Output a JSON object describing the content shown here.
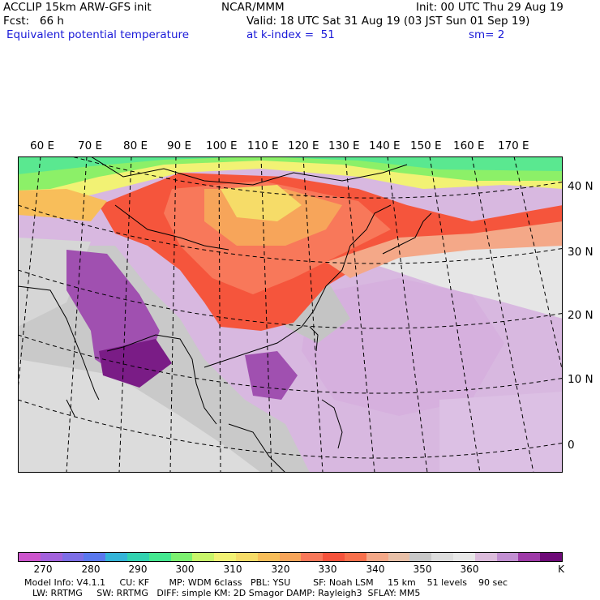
{
  "header": {
    "model": "ACCLIP 15km ARW-GFS init",
    "center": "NCAR/MMM",
    "init": "Init: 00 UTC Thu 29 Aug 19",
    "fcst": "Fcst:   66 h",
    "valid": "Valid: 18 UTC Sat 31 Aug 19 (03 JST Sun 01 Sep 19)",
    "field": "Equivalent potential temperature",
    "level": "at k-index =  51",
    "smooth": "sm= 2"
  },
  "map": {
    "lon_labels": [
      "60 E",
      "70 E",
      "80 E",
      "90 E",
      "100 E",
      "110 E",
      "120 E",
      "130 E",
      "140 E",
      "150 E",
      "160 E",
      "170 E"
    ],
    "lat_labels": [
      "40 N",
      "30 N",
      "20 N",
      "10 N",
      "0"
    ]
  },
  "colorbar": {
    "colors": [
      "#cc55cc",
      "#a362dc",
      "#7d6ee6",
      "#5a78ee",
      "#34b4d8",
      "#32d2b0",
      "#44e890",
      "#7cf070",
      "#c8f56a",
      "#f2f274",
      "#f6dc68",
      "#f8be5a",
      "#f7a55a",
      "#f8785a",
      "#f5533c",
      "#f8704c",
      "#f4a888",
      "#e8c0a8",
      "#c8c8c8",
      "#dddddd",
      "#e8e8e8",
      "#dcbcdc",
      "#c28fd2",
      "#9e3aa8",
      "#6e0a78"
    ],
    "ticks": [
      "270",
      "280",
      "290",
      "300",
      "310",
      "320",
      "330",
      "340",
      "350",
      "360",
      "K"
    ],
    "unit": "K"
  },
  "footer": {
    "line1": "Model Info: V4.1.1     CU: KF       MP: WDM 6class   PBL: YSU        SF: Noah LSM     15 km    51 levels    90 sec",
    "line2": "LW: RRTMG     SW: RRTMG   DIFF: simple KM: 2D Smagor DAMP: Rayleigh3  SFLAY: MM5"
  }
}
